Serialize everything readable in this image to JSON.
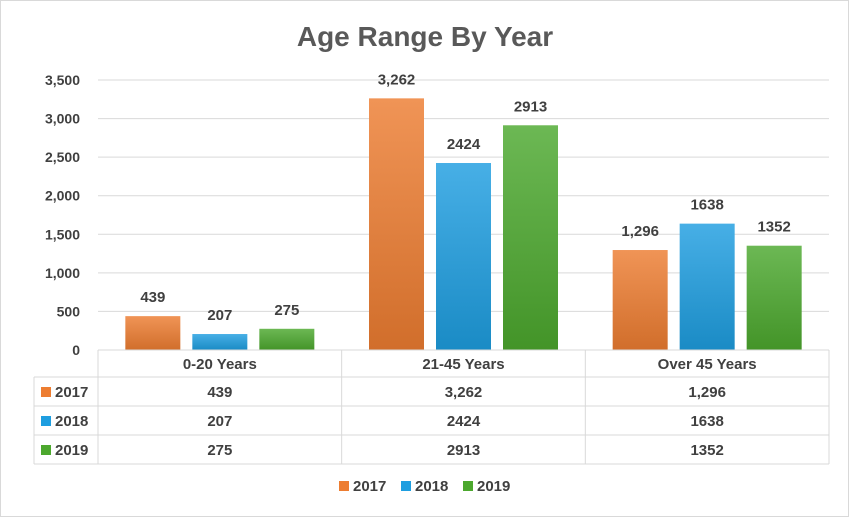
{
  "chart_data": {
    "type": "bar",
    "title": "Age Range By Year",
    "categories": [
      "0-20 Years",
      "21-45 Years",
      "Over 45 Years"
    ],
    "series": [
      {
        "name": "2017",
        "values": [
          439,
          3262,
          1296
        ],
        "labels": [
          "439",
          "3,262",
          "1,296"
        ],
        "color": "#ed7d31"
      },
      {
        "name": "2018",
        "values": [
          207,
          2424,
          1638
        ],
        "labels": [
          "207",
          "2424",
          "1638"
        ],
        "color": "#1e9ee0"
      },
      {
        "name": "2019",
        "values": [
          275,
          2913,
          1352
        ],
        "labels": [
          "275",
          "2913",
          "1352"
        ],
        "color": "#4ca82e"
      }
    ],
    "ylim": [
      0,
      3500
    ],
    "yticks": [
      0,
      500,
      1000,
      1500,
      2000,
      2500,
      3000,
      3500
    ],
    "ytick_labels": [
      "0",
      "500",
      "1,000",
      "1,500",
      "2,000",
      "2,500",
      "3,000",
      "3,500"
    ],
    "grid": true,
    "data_table": true,
    "legend_position": "bottom"
  }
}
